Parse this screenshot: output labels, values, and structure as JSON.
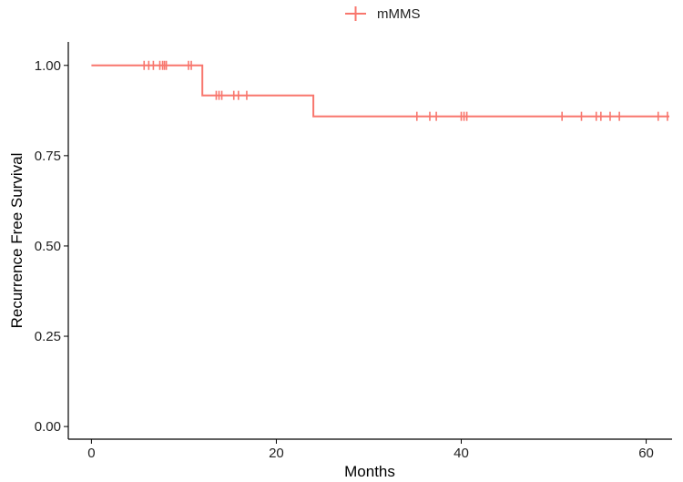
{
  "chart_data": {
    "type": "line",
    "title": "",
    "xlabel": "Months",
    "ylabel": "Recurrence Free Survival",
    "xlim": [
      -2.5,
      62.8
    ],
    "ylim": [
      -0.035,
      1.065
    ],
    "x_ticks": [
      0,
      20,
      40,
      60
    ],
    "x_tick_labels": [
      "0",
      "20",
      "40",
      "60"
    ],
    "y_ticks": [
      0,
      0.25,
      0.5,
      0.75,
      1.0
    ],
    "y_tick_labels": [
      "0.00",
      "0.25",
      "0.50",
      "0.75",
      "1.00"
    ],
    "grid": false,
    "legend_position": "top",
    "series": [
      {
        "name": "mMMS",
        "color": "#F8766D",
        "step_x": [
          0,
          12,
          12,
          24,
          24,
          62.5
        ],
        "step_y": [
          1.0,
          1.0,
          0.917,
          0.917,
          0.859,
          0.859
        ],
        "censored": [
          {
            "x": 5.7,
            "y": 1.0
          },
          {
            "x": 6.2,
            "y": 1.0
          },
          {
            "x": 6.7,
            "y": 1.0
          },
          {
            "x": 7.4,
            "y": 1.0
          },
          {
            "x": 7.7,
            "y": 1.0
          },
          {
            "x": 7.9,
            "y": 1.0
          },
          {
            "x": 8.1,
            "y": 1.0
          },
          {
            "x": 10.5,
            "y": 1.0
          },
          {
            "x": 10.8,
            "y": 1.0
          },
          {
            "x": 13.5,
            "y": 0.917
          },
          {
            "x": 13.8,
            "y": 0.917
          },
          {
            "x": 14.1,
            "y": 0.917
          },
          {
            "x": 15.4,
            "y": 0.917
          },
          {
            "x": 15.9,
            "y": 0.917
          },
          {
            "x": 16.8,
            "y": 0.917
          },
          {
            "x": 35.2,
            "y": 0.859
          },
          {
            "x": 36.6,
            "y": 0.859
          },
          {
            "x": 37.3,
            "y": 0.859
          },
          {
            "x": 40.0,
            "y": 0.859
          },
          {
            "x": 40.3,
            "y": 0.859
          },
          {
            "x": 40.6,
            "y": 0.859
          },
          {
            "x": 50.9,
            "y": 0.859
          },
          {
            "x": 53.0,
            "y": 0.859
          },
          {
            "x": 54.6,
            "y": 0.859
          },
          {
            "x": 55.1,
            "y": 0.859
          },
          {
            "x": 56.1,
            "y": 0.859
          },
          {
            "x": 57.1,
            "y": 0.859
          },
          {
            "x": 61.3,
            "y": 0.859
          },
          {
            "x": 62.3,
            "y": 0.859
          }
        ]
      }
    ]
  }
}
